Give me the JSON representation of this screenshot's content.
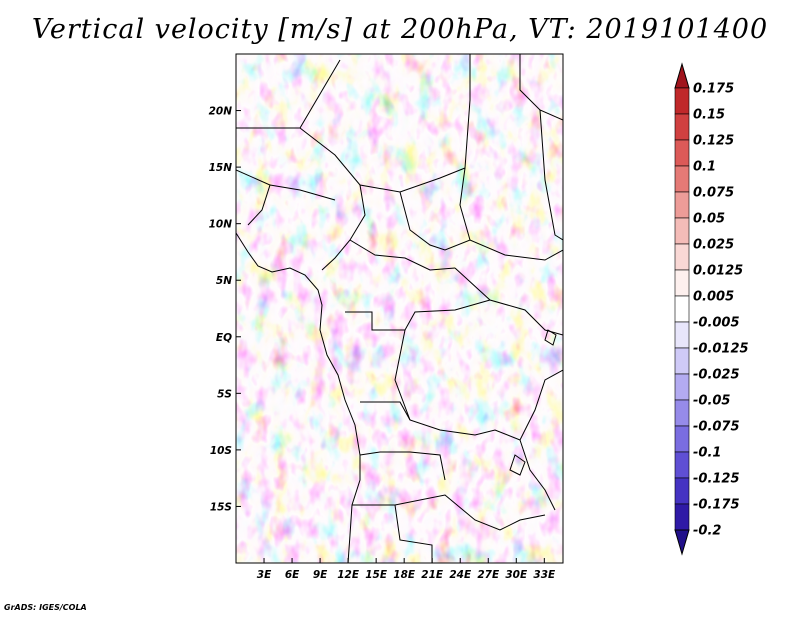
{
  "title": "Vertical velocity [m/s] at 200hPa, VT: 2019101400",
  "credit": "GrADS: IGES/COLA",
  "map": {
    "type": "shaded-field",
    "field": "vertical velocity",
    "level": "200hPa",
    "valid_time": "2019101400",
    "lon_range": [
      0,
      35
    ],
    "lat_range": [
      -20,
      25
    ],
    "lon_ticks": [
      {
        "value": 3,
        "label": "3E"
      },
      {
        "value": 6,
        "label": "6E"
      },
      {
        "value": 9,
        "label": "9E"
      },
      {
        "value": 12,
        "label": "12E"
      },
      {
        "value": 15,
        "label": "15E"
      },
      {
        "value": 18,
        "label": "18E"
      },
      {
        "value": 21,
        "label": "21E"
      },
      {
        "value": 24,
        "label": "24E"
      },
      {
        "value": 27,
        "label": "27E"
      },
      {
        "value": 30,
        "label": "30E"
      },
      {
        "value": 33,
        "label": "33E"
      }
    ],
    "lat_ticks": [
      {
        "value": 20,
        "label": "20N"
      },
      {
        "value": 15,
        "label": "15N"
      },
      {
        "value": 10,
        "label": "10N"
      },
      {
        "value": 5,
        "label": "5N"
      },
      {
        "value": 0,
        "label": "EQ"
      },
      {
        "value": -5,
        "label": "5S"
      },
      {
        "value": -10,
        "label": "10S"
      },
      {
        "value": -15,
        "label": "15S"
      }
    ]
  },
  "colorbar": {
    "levels": [
      {
        "label": "0.175",
        "color": "#b0161a"
      },
      {
        "label": "0.15",
        "color": "#c0282a"
      },
      {
        "label": "0.125",
        "color": "#d04040"
      },
      {
        "label": "0.1",
        "color": "#dc5a58"
      },
      {
        "label": "0.075",
        "color": "#e57a76"
      },
      {
        "label": "0.05",
        "color": "#ed9c98"
      },
      {
        "label": "0.025",
        "color": "#f4bcb8"
      },
      {
        "label": "0.0125",
        "color": "#f9d8d5"
      },
      {
        "label": "0.005",
        "color": "#fdf0ee"
      },
      {
        "label": "-0.005",
        "color": "#ffffff"
      },
      {
        "label": "-0.0125",
        "color": "#e8e6fb"
      },
      {
        "label": "-0.025",
        "color": "#cfcaf7"
      },
      {
        "label": "-0.05",
        "color": "#b3abf1"
      },
      {
        "label": "-0.075",
        "color": "#968be9"
      },
      {
        "label": "-0.1",
        "color": "#7a6de0"
      },
      {
        "label": "-0.125",
        "color": "#5f4fd4"
      },
      {
        "label": "-0.175",
        "color": "#4533c2"
      },
      {
        "label": "-0.2",
        "color": "#2f1aa6"
      }
    ],
    "top_triangle_color": "#a0141c",
    "bottom_triangle_color": "#21108a"
  }
}
